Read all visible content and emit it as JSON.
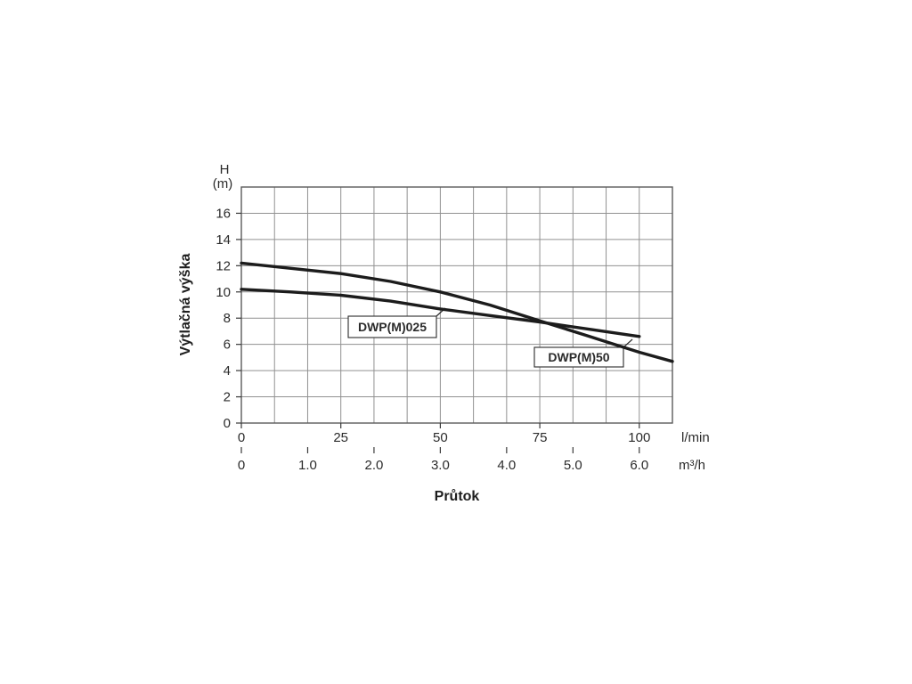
{
  "chart_data": {
    "type": "line",
    "title": "",
    "xlabel": "Průtok",
    "ylabel": "Výtlačná výška",
    "y_axis": {
      "symbol": "H",
      "unit": "(m)",
      "ticks": [
        0,
        2,
        4,
        6,
        8,
        10,
        12,
        14,
        16
      ],
      "min": 0,
      "max": 18,
      "grid_step": 2
    },
    "x_axis_lmin": {
      "unit": "l/min",
      "ticks": [
        0,
        25,
        50,
        75,
        100
      ],
      "min": 0,
      "max": 108.33
    },
    "x_axis_m3h": {
      "unit": "m³/h",
      "tick_labels": [
        "0",
        "1.0",
        "2.0",
        "3.0",
        "4.0",
        "5.0",
        "6.0"
      ],
      "tick_values": [
        0,
        1,
        2,
        3,
        4,
        5,
        6
      ],
      "min": 0,
      "max": 6.5,
      "grid_step": 0.5
    },
    "series": [
      {
        "name": "DWP(M)025",
        "x_m3h": [
          0,
          0.75,
          1.5,
          2.25,
          3.0,
          3.75,
          4.5,
          5.25,
          6.0
        ],
        "head_m": [
          10.2,
          10.0,
          9.75,
          9.3,
          8.7,
          8.2,
          7.7,
          7.15,
          6.6
        ]
      },
      {
        "name": "DWP(M)50",
        "x_m3h": [
          0,
          0.75,
          1.5,
          2.25,
          3.0,
          3.75,
          4.5,
          5.25,
          6.0,
          6.5
        ],
        "head_m": [
          12.2,
          11.8,
          11.4,
          10.8,
          10.0,
          9.0,
          7.8,
          6.6,
          5.4,
          4.7
        ]
      }
    ],
    "colors": {
      "curve": "#1c1c1c",
      "grid": "#919191",
      "border": "#5a5a5a",
      "text": "#2b2b2b"
    }
  }
}
